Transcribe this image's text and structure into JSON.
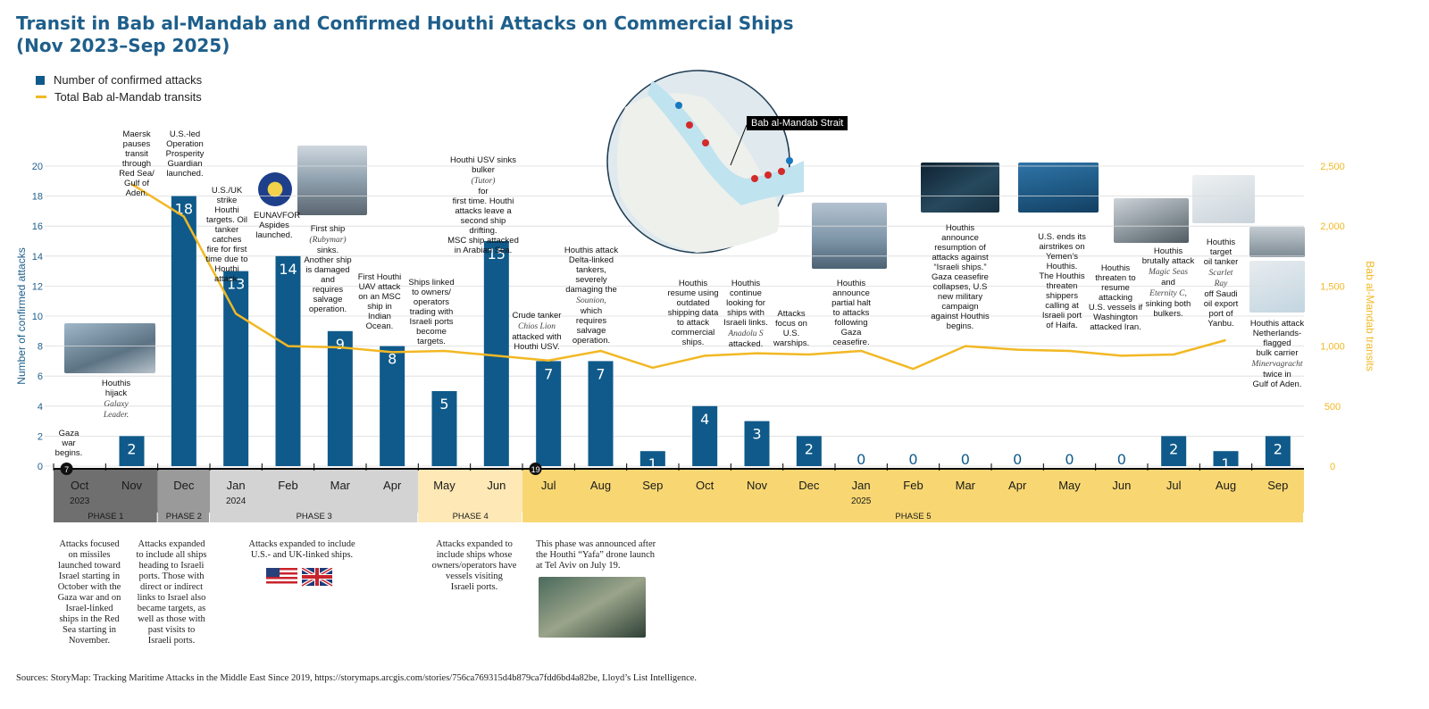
{
  "title": [
    "Transit in Bab al-Mandab and Confirmed Houthi Attacks on Commercial Ships",
    "(Nov 2023–Sep 2025)"
  ],
  "legend": {
    "attacks": "Number of confirmed attacks",
    "transits": "Total Bab al-Mandab transits"
  },
  "map_label": "Bab al-Mandab Strait",
  "colors": {
    "bar": "#0f5a8a",
    "line": "#f2b824",
    "title": "#1f5f8b",
    "phase1": "#6f6f6f",
    "phase2": "#9a9a9a",
    "phase3": "#d3d3d3",
    "phase4": "#fde8b6",
    "phase5": "#f8d772"
  },
  "chart_data": {
    "type": "bar",
    "x": [
      "Oct",
      "Nov",
      "Dec",
      "Jan",
      "Feb",
      "Mar",
      "Apr",
      "May",
      "Jun",
      "Jul",
      "Aug",
      "Sep",
      "Oct",
      "Nov",
      "Dec",
      "Jan",
      "Feb",
      "Mar",
      "Apr",
      "May",
      "Jun",
      "Jul",
      "Aug",
      "Sep"
    ],
    "year_labels": [
      {
        "label": "2023",
        "index": 0
      },
      {
        "label": "2024",
        "index": 3
      },
      {
        "label": "2025",
        "index": 15
      }
    ],
    "series": [
      {
        "name": "Number of confirmed attacks",
        "type": "bar",
        "axis": "left",
        "values": [
          null,
          2,
          18,
          13,
          14,
          9,
          8,
          5,
          15,
          7,
          7,
          1,
          4,
          3,
          2,
          0,
          0,
          0,
          0,
          0,
          0,
          2,
          1,
          2
        ]
      },
      {
        "name": "Total Bab al-Mandab transits",
        "type": "line",
        "axis": "right",
        "values": [
          null,
          2350,
          2080,
          1270,
          1000,
          990,
          950,
          960,
          920,
          880,
          960,
          820,
          920,
          940,
          930,
          960,
          810,
          1000,
          970,
          960,
          920,
          930,
          1050,
          null
        ]
      }
    ],
    "yleft": {
      "label": "Number of confirmed attacks",
      "ticks": [
        0,
        2,
        4,
        6,
        8,
        10,
        12,
        14,
        16,
        18,
        20
      ],
      "lim": [
        0,
        20
      ]
    },
    "yright": {
      "label": "Bab al-Mandab transits",
      "ticks": [
        "0",
        "500",
        "1,000",
        "1,500",
        "2,000",
        "2,500"
      ],
      "tick_values": [
        0,
        500,
        1000,
        1500,
        2000,
        2500
      ],
      "lim": [
        0,
        2500
      ]
    },
    "markers": [
      {
        "index": 0,
        "label": "7"
      },
      {
        "index": 9,
        "label": "19"
      }
    ],
    "phases": [
      {
        "label": "PHASE 1",
        "from": 0,
        "to": 1,
        "color_key": "phase1",
        "desc": "Attacks focused\non missiles\nlaunched toward\nIsrael starting in\nOctober with the\nGaza war and on\nIsrael-linked\nships in the Red\nSea starting in\nNovember."
      },
      {
        "label": "PHASE 2",
        "from": 2,
        "to": 2,
        "color_key": "phase2",
        "desc": "Attacks expanded\nto include all ships\nheading to Israeli\nports. Those with\ndirect or indirect\nlinks to Israel also\nbecame targets, as\nwell as those with\npast visits to\nIsraeli ports."
      },
      {
        "label": "PHASE 3",
        "from": 3,
        "to": 6,
        "color_key": "phase3",
        "desc": "Attacks expanded to include\nU.S.- and UK-linked ships."
      },
      {
        "label": "PHASE 4",
        "from": 7,
        "to": 8,
        "color_key": "phase4",
        "desc": "Attacks expanded to\ninclude ships whose\nowners/operators have\nvessels visiting\nIsraeli ports."
      },
      {
        "label": "PHASE 5",
        "from": 9,
        "to": 23,
        "color_key": "phase5",
        "desc": "This phase was announced after\nthe Houthi “Yafa” drone launch\nat Tel Aviv on July 19."
      }
    ],
    "annotations": [
      {
        "text": "Gaza war\nbegins."
      },
      {
        "text": "Houthis\nhijack",
        "em": "Galaxy\nLeader."
      },
      {
        "text": "Maersk\npauses transit\nthrough\nRed Sea/\nGulf of Aden."
      },
      {
        "text": "U.S.-led\nOperation\nProsperity\nGuardian\nlaunched."
      },
      {
        "text": "U.S./UK\nstrike Houthi\ntargets. Oil\ntanker catches\nfire for first\ntime due to\nHouthi attack."
      },
      {
        "text": "EUNAVFOR\nAspides\nlaunched."
      },
      {
        "text": "First ship",
        "em": "(Rubymar)",
        "text2": "sinks.\nAnother ship\nis damaged\nand\nrequires\nsalvage\noperation."
      },
      {
        "text": "First Houthi\nUAV attack\non an MSC\nship in\nIndian\nOcean."
      },
      {
        "text": "Ships linked\nto owners/\noperators\ntrading with\nIsraeli ports\nbecome\ntargets."
      },
      {
        "text": "Houthi USV sinks\nbulker",
        "em": "(Tutor)",
        "text2": "for\nfirst time. Houthi\nattacks leave a\nsecond ship drifting.\nMSC ship attacked\nin Arabian Sea."
      },
      {
        "text": "Crude tanker",
        "em": "Chios Lion",
        "text2": "attacked with\nHouthi USV."
      },
      {
        "text": "Houthis attack\nDelta-linked\ntankers,\nseverely\ndamaging the",
        "em": "Sounion,",
        "text2": "which\nrequires\nsalvage\noperation."
      },
      {
        "text": "Houthis\nresume using\noutdated\nshipping data\nto attack\ncommercial\nships."
      },
      {
        "text": "Houthis\ncontinue\nlooking for\nships with\nIsraeli links.",
        "em": "Anadolu S",
        "text2": "attacked."
      },
      {
        "text": "Attacks\nfocus on\nU.S.\nwarships."
      },
      {
        "text": "Houthis\nannounce\npartial halt\nto attacks\nfollowing\nGaza\nceasefire."
      },
      {
        "text": "Houthis\nannounce\nresumption of\nattacks against\n“Israeli ships.”\nGaza ceasefire\ncollapses, U.S\nnew military\ncampaign\nagainst Houthis\nbegins."
      },
      {
        "text": "U.S. ends its\nairstrikes on\nYemen’s\nHouthis.\nThe Houthis\nthreaten\nshippers\ncalling at\nIsraeli port\nof Haifa."
      },
      {
        "text": "Houthis\nthreaten to\nresume\nattacking\nU.S. vessels if\nWashington\nattacked Iran."
      },
      {
        "text": "Houthis\nbrutally attack",
        "em": "Magic Seas",
        "text2": "and",
        "em2": "Eternity C,",
        "text3": "sinking both\nbulkers."
      },
      {
        "text": "Houthis\ntarget\noil tanker",
        "em": "Scarlet Ray",
        "text2": "off Saudi\noil export\nport of\nYanbu."
      },
      {
        "text": "Houthis attack\nNetherlands-\nflagged\nbulk carrier",
        "em": "Minervagracht",
        "text2": "twice in\nGulf of Aden."
      }
    ]
  },
  "source": "Sources: StoryMap: Tracking Maritime Attacks in the Middle East Since 2019, https://storymaps.arcgis.com/stories/756ca769315d4b879ca7fdd6bd4a82be, Lloyd’s List Intelligence."
}
